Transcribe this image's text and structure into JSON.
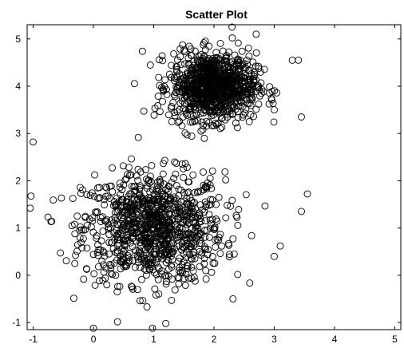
{
  "chart_data": {
    "type": "scatter",
    "title": "Scatter Plot",
    "xlabel": "",
    "ylabel": "",
    "xlim": [
      -1.1,
      5.1
    ],
    "ylim": [
      -1.15,
      5.3
    ],
    "xticks": [
      "-1",
      "0",
      "1",
      "2",
      "3",
      "4",
      "5"
    ],
    "yticks": [
      "-1",
      "0",
      "1",
      "2",
      "3",
      "4",
      "5"
    ],
    "grid": false,
    "marker": "open-circle",
    "marker_color": "#000000",
    "series": [
      {
        "cluster_center": [
          1.0,
          1.0
        ],
        "cluster_spread": [
          0.75,
          0.75
        ],
        "approx_count": 1000,
        "outliers": [
          [
            -1.05,
            1.42
          ],
          [
            -1.0,
            2.82
          ],
          [
            0.0,
            -1.12
          ],
          [
            1.2,
            -1.02
          ],
          [
            0.98,
            -1.12
          ],
          [
            3.55,
            1.72
          ],
          [
            3.45,
            1.35
          ],
          [
            3.1,
            0.62
          ],
          [
            3.0,
            0.4
          ]
        ]
      },
      {
        "cluster_center": [
          2.0,
          4.0
        ],
        "cluster_spread": [
          0.45,
          0.45
        ],
        "approx_count": 1000,
        "outliers": [
          [
            3.45,
            3.35
          ],
          [
            3.0,
            3.5
          ],
          [
            3.4,
            4.55
          ],
          [
            3.3,
            4.55
          ],
          [
            2.3,
            5.25
          ],
          [
            2.7,
            5.1
          ],
          [
            1.3,
            3.25
          ]
        ]
      }
    ]
  }
}
